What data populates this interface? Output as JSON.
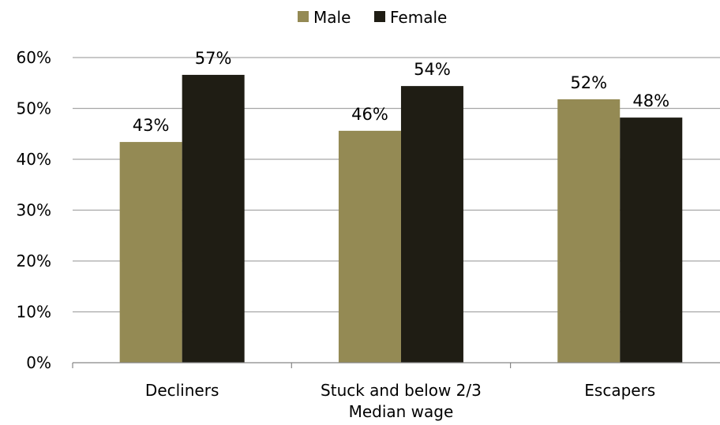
{
  "chart_data": {
    "type": "bar",
    "categories": [
      "Decliners",
      "Stuck and below 2/3 Median wage",
      "Escapers"
    ],
    "category_label_lines": [
      [
        "Decliners"
      ],
      [
        "Stuck and below 2/3",
        "Median wage"
      ],
      [
        "Escapers"
      ]
    ],
    "series": [
      {
        "name": "Male",
        "values": [
          43.4,
          45.6,
          51.8
        ],
        "data_labels": [
          "43%",
          "46%",
          "52%"
        ],
        "color": "#948A54"
      },
      {
        "name": "Female",
        "values": [
          56.6,
          54.4,
          48.2
        ],
        "data_labels": [
          "57%",
          "54%",
          "48%"
        ],
        "color": "#1F1D14"
      }
    ],
    "y_ticks": [
      0,
      10,
      20,
      30,
      40,
      50,
      60
    ],
    "y_tick_labels": [
      "0%",
      "10%",
      "20%",
      "30%",
      "40%",
      "50%",
      "60%"
    ],
    "ylim": [
      0,
      60
    ],
    "grid": true,
    "legend_position": "top-center",
    "title": "",
    "xlabel": "",
    "ylabel": ""
  },
  "colors": {
    "gridline": "#A6A6A6",
    "axis": "#868686"
  }
}
